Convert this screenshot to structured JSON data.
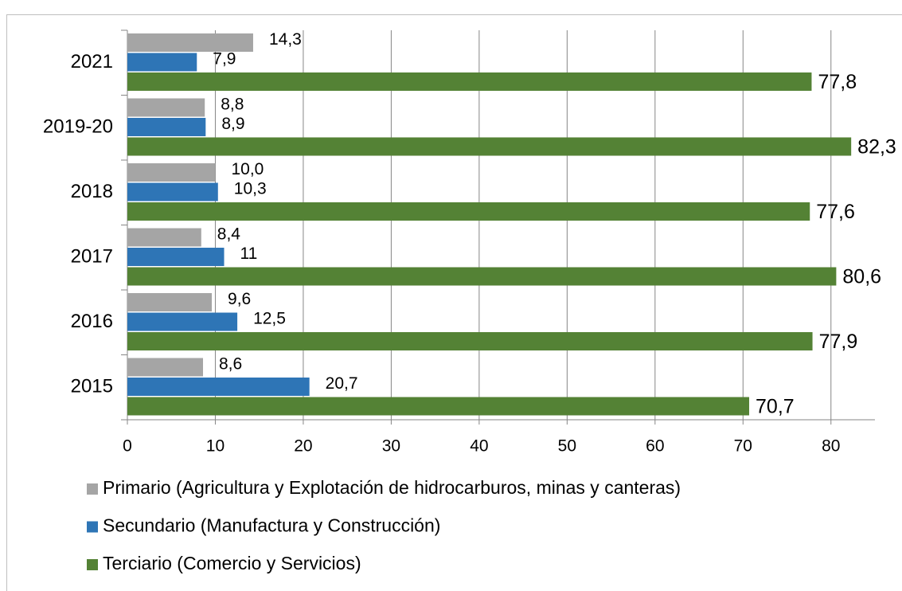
{
  "chart_data": {
    "type": "hbar",
    "categories": [
      "2015",
      "2016",
      "2017",
      "2018",
      "2019-20",
      "2021"
    ],
    "series": [
      {
        "name": "Primario (Agricultura y Explotación de hidrocarburos, minas y canteras)",
        "color": "#a5a5a5",
        "values": [
          8.6,
          9.6,
          8.4,
          10.0,
          8.8,
          14.3
        ],
        "value_labels": [
          "8,6",
          "9,6",
          "8,4",
          "10,0",
          "8,8",
          "14,3"
        ]
      },
      {
        "name": "Secundario (Manufactura y Construcción)",
        "color": "#2e75b6",
        "values": [
          20.7,
          12.5,
          11,
          10.3,
          8.9,
          7.9
        ],
        "value_labels": [
          "20,7",
          "12,5",
          "11",
          "10,3",
          "8,9",
          "7,9"
        ]
      },
      {
        "name": "Terciario (Comercio y Servicios)",
        "color": "#548235",
        "values": [
          70.7,
          77.9,
          80.6,
          77.6,
          82.3,
          77.8
        ],
        "value_labels": [
          "70,7",
          "77,9",
          "80,6",
          "77,6",
          "82,3",
          "77,8"
        ]
      }
    ],
    "xlim": [
      0,
      85
    ],
    "xticks": [
      0,
      10,
      20,
      30,
      40,
      50,
      60,
      70,
      80
    ],
    "grid": true,
    "legend": "bottom"
  }
}
